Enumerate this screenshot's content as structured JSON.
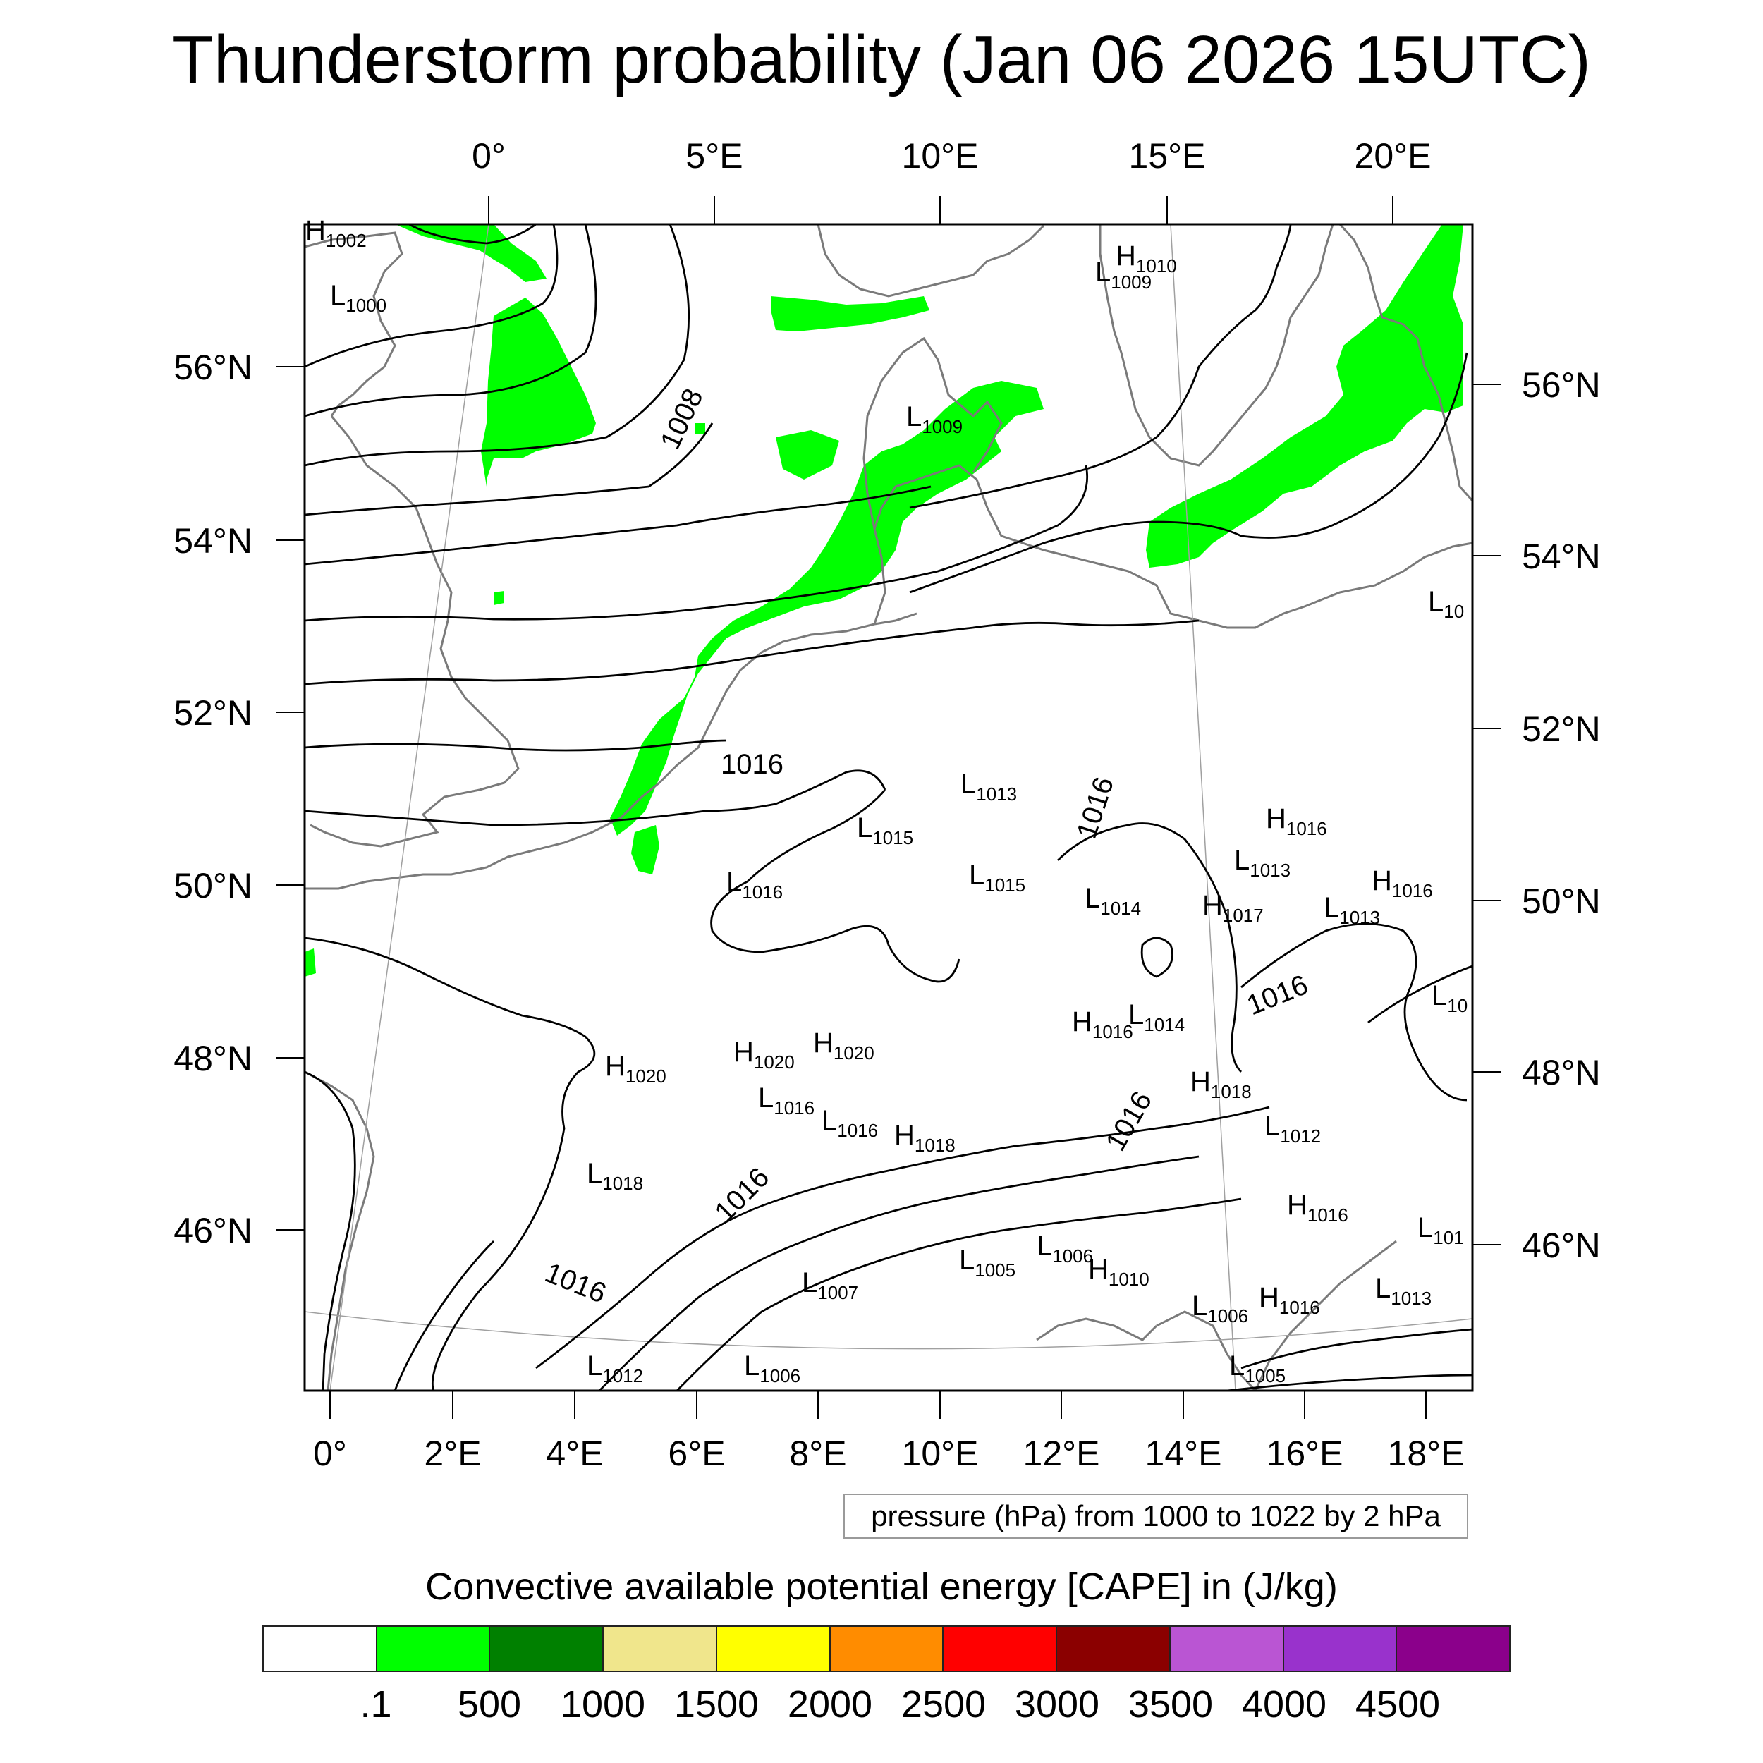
{
  "title": "Thunderstorm probability (Jan 06 2026 15UTC)",
  "top_lon_labels": [
    "0°",
    "5°E",
    "10°E",
    "15°E",
    "20°E"
  ],
  "left_lat_labels": [
    "56°N",
    "54°N",
    "52°N",
    "50°N",
    "48°N",
    "46°N"
  ],
  "right_lat_labels": [
    "56°N",
    "54°N",
    "52°N",
    "50°N",
    "48°N",
    "46°N"
  ],
  "bottom_lon_labels": [
    "0°",
    "2°E",
    "4°E",
    "6°E",
    "8°E",
    "10°E",
    "12°E",
    "14°E",
    "16°E",
    "18°E"
  ],
  "isobar_labels": [
    "1008",
    "1016",
    "1016",
    "1016",
    "1016",
    "1016",
    "1016"
  ],
  "pressure_systems": [
    {
      "type": "H",
      "value": "1002"
    },
    {
      "type": "L",
      "value": "1000"
    },
    {
      "type": "L",
      "value": "1009"
    },
    {
      "type": "H",
      "value": "1010"
    },
    {
      "type": "L",
      "value": "1009"
    },
    {
      "type": "L",
      "value": "10"
    },
    {
      "type": "L",
      "value": "1013"
    },
    {
      "type": "L",
      "value": "1015"
    },
    {
      "type": "L",
      "value": "1016"
    },
    {
      "type": "L",
      "value": "1015"
    },
    {
      "type": "L",
      "value": "1014"
    },
    {
      "type": "H",
      "value": "1016"
    },
    {
      "type": "L",
      "value": "1013"
    },
    {
      "type": "H",
      "value": "1016"
    },
    {
      "type": "H",
      "value": "1017"
    },
    {
      "type": "L",
      "value": "1013"
    },
    {
      "type": "L",
      "value": "10"
    },
    {
      "type": "H",
      "value": "1016"
    },
    {
      "type": "L",
      "value": "1014"
    },
    {
      "type": "H",
      "value": "1020"
    },
    {
      "type": "H",
      "value": "1020"
    },
    {
      "type": "H",
      "value": "1020"
    },
    {
      "type": "L",
      "value": "1016"
    },
    {
      "type": "L",
      "value": "1016"
    },
    {
      "type": "H",
      "value": "1018"
    },
    {
      "type": "H",
      "value": "1018"
    },
    {
      "type": "L",
      "value": "1012"
    },
    {
      "type": "L",
      "value": "1018"
    },
    {
      "type": "H",
      "value": "1016"
    },
    {
      "type": "L",
      "value": "101"
    },
    {
      "type": "L",
      "value": "1005"
    },
    {
      "type": "L",
      "value": "1006"
    },
    {
      "type": "H",
      "value": "1010"
    },
    {
      "type": "L",
      "value": "1007"
    },
    {
      "type": "L",
      "value": "1013"
    },
    {
      "type": "L",
      "value": "1006"
    },
    {
      "type": "H",
      "value": "1016"
    },
    {
      "type": "L",
      "value": "1012"
    },
    {
      "type": "L",
      "value": "1006"
    },
    {
      "type": "L",
      "value": "1005"
    }
  ],
  "pressure_note": "pressure (hPa) from 1000 to 1022 by 2 hPa",
  "colorbar": {
    "title": "Convective available potential energy [CAPE] in (J/kg)",
    "colors": [
      "#ffffff",
      "#00ff00",
      "#008000",
      "#f0e68c",
      "#ffff00",
      "#ff8c00",
      "#ff0000",
      "#8b0000",
      "#ba55d3",
      "#9932cc",
      "#8b008b"
    ],
    "labels": [
      ".1",
      "500",
      "1000",
      "1500",
      "2000",
      "2500",
      "3000",
      "3500",
      "4000",
      "4500"
    ]
  },
  "colors": {
    "cape_green": "#00ff00",
    "coastline": "#7a7a7a",
    "isobar": "#000000",
    "graticule": "#a0a0a0"
  }
}
